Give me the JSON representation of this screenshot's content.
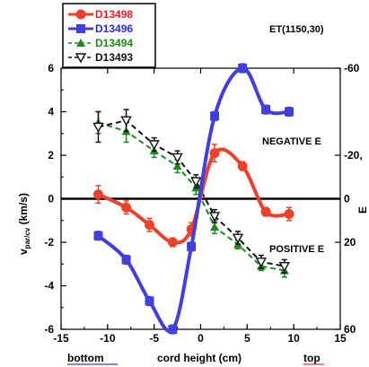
{
  "chart_data": {
    "type": "line",
    "title": "ET(1150,30)",
    "xlabel": "cord height (cm)",
    "ylabel_main": "v",
    "ylabel_sub": "par/cv",
    "ylabel_unit": " (km/s)",
    "right_axis_label": "E",
    "xlim": [
      -15,
      15
    ],
    "ylim": [
      -6,
      6
    ],
    "right_ylim": [
      -60,
      60
    ],
    "x_ticks": [
      -15,
      -10,
      -5,
      0,
      5,
      10,
      15
    ],
    "y_ticks": [
      -6,
      -4,
      -2,
      0,
      2,
      4,
      6
    ],
    "right_ticks": [
      -60,
      -20,
      0,
      20,
      60
    ],
    "right_tick_labels": [
      "-60",
      "-20,",
      "0",
      "20",
      "60"
    ],
    "x_tick_labels": [
      "-15",
      "-10",
      "-5",
      "0",
      "5",
      "10",
      "15"
    ],
    "y_tick_labels": [
      "-6",
      "-4",
      "-2",
      "0",
      "2",
      "4",
      "6"
    ],
    "annotations": {
      "negative": "NEGATIVE E",
      "positive": "POSITIVE E",
      "bottom": "bottom",
      "top": "top"
    },
    "colors": {
      "bottom": "#3b3bd6",
      "top": "#e83a2a"
    },
    "series": [
      {
        "name": "D13498",
        "color": "#f0402a",
        "marker": "circle",
        "dash": "solid",
        "x": [
          -11,
          -8,
          -5.5,
          -3,
          -1,
          1.5,
          4.5,
          7,
          9.5
        ],
        "y": [
          0.2,
          -0.4,
          -1.2,
          -2.0,
          -1.4,
          2.1,
          1.5,
          -0.6,
          -0.7
        ],
        "err": [
          0.4,
          0.3,
          0.3,
          0.2,
          0.3,
          0.4,
          0.2,
          0.2,
          0.3
        ]
      },
      {
        "name": "D13496",
        "color": "#4040e0",
        "marker": "square",
        "dash": "solid",
        "x": [
          -11,
          -8,
          -5.5,
          -3,
          -1,
          1.5,
          4.5,
          7,
          9.5
        ],
        "y": [
          -1.7,
          -2.8,
          -4.7,
          -6.0,
          -2.2,
          3.8,
          6.0,
          4.1,
          4.0
        ],
        "err": [
          0.2,
          0.2,
          0.2,
          0.2,
          0.2,
          0.2,
          0.2,
          0.2,
          0.2
        ]
      },
      {
        "name": "D13494",
        "color": "#1a8a1a",
        "marker": "triangle-up",
        "dash": "dashed",
        "x": [
          -11,
          -8,
          -5,
          -2.5,
          -0.5,
          1.5,
          4,
          6.5,
          9
        ],
        "y": [
          3.5,
          3.1,
          2.2,
          1.5,
          0.5,
          -1.3,
          -2.1,
          -3.1,
          -3.3
        ],
        "err": [
          0.5,
          0.5,
          0.3,
          0.3,
          0.3,
          0.3,
          0.2,
          0.2,
          0.3
        ]
      },
      {
        "name": "D13493",
        "color": "#111111",
        "marker": "triangle-down",
        "dash": "dashed",
        "x": [
          -11,
          -8,
          -5,
          -2.5,
          -0.5,
          1.5,
          4,
          6.5,
          9
        ],
        "y": [
          3.3,
          3.6,
          2.5,
          1.9,
          0.8,
          -0.8,
          -1.8,
          -2.9,
          -3.1
        ],
        "err": [
          0.7,
          0.5,
          0.3,
          0.3,
          0.3,
          0.3,
          0.3,
          0.3,
          0.3
        ]
      }
    ]
  }
}
